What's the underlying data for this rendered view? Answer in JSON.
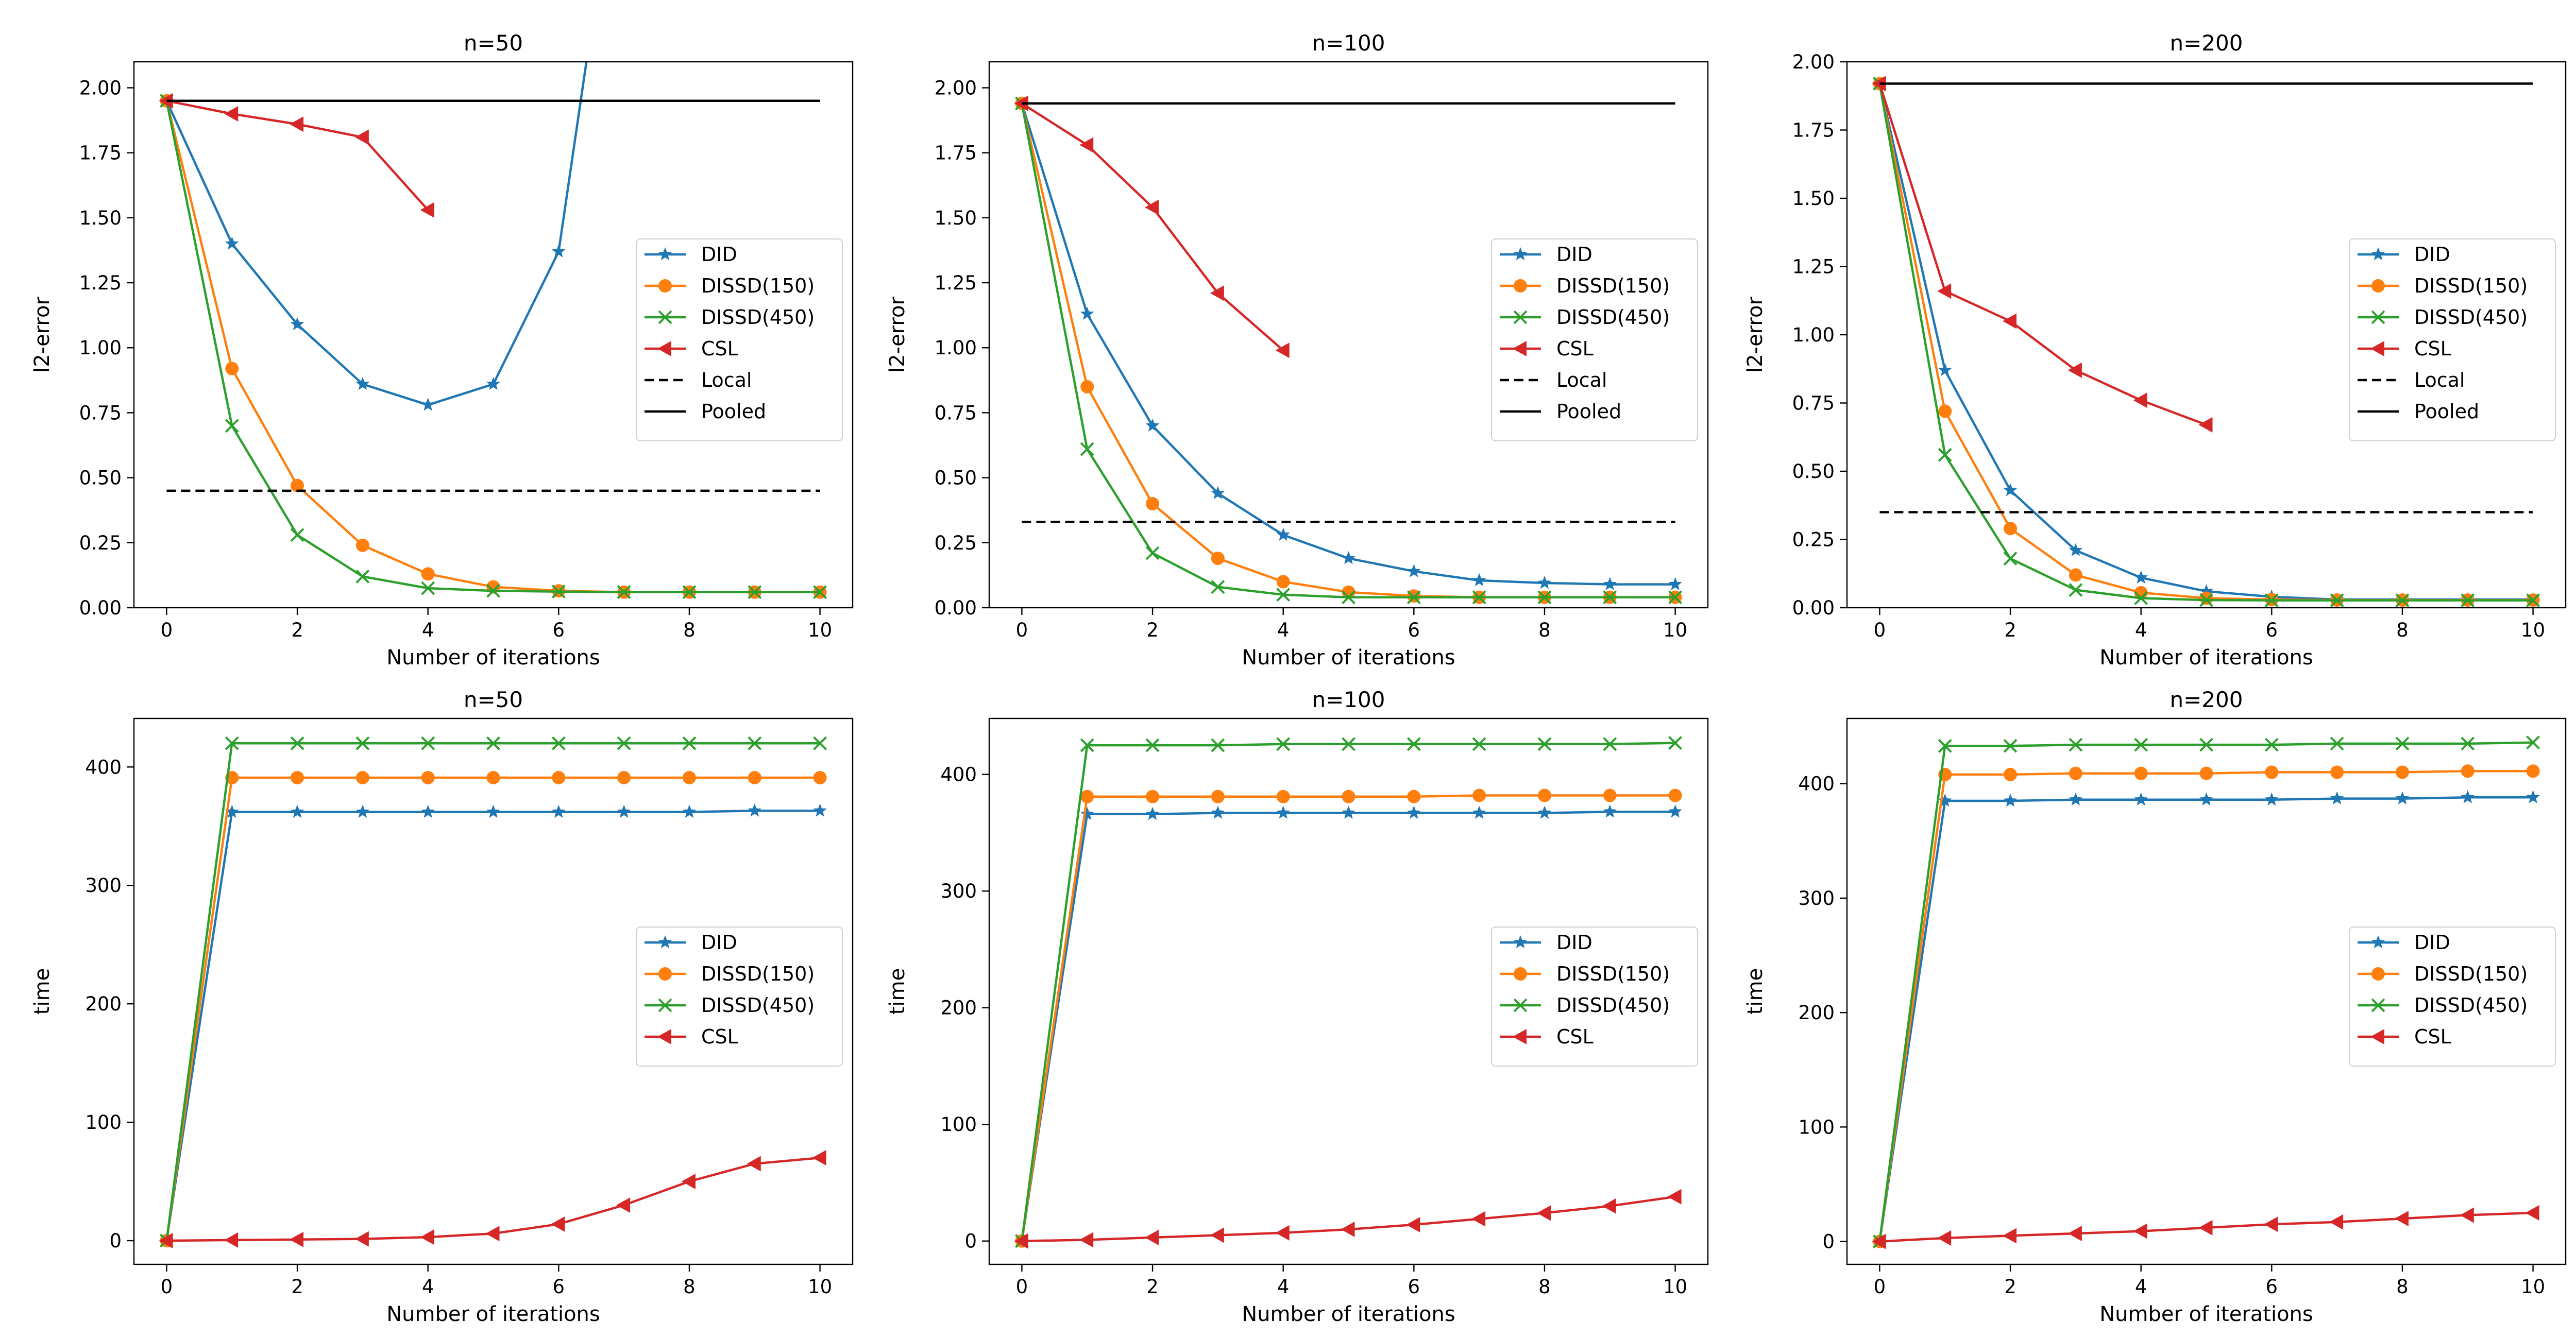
{
  "colors": {
    "DID": "#1f77b4",
    "DISSD(150)": "#ff7f0e",
    "DISSD(450)": "#2ca02c",
    "CSL": "#d62728",
    "Local": "#000000",
    "Pooled": "#000000"
  },
  "chart_data": [
    {
      "type": "line",
      "title": "n=50",
      "xlabel": "Number of iterations",
      "ylabel": "l2-error",
      "xlim": [
        -0.5,
        10.5
      ],
      "ylim": [
        0,
        2.1
      ],
      "xticks": [
        0,
        2,
        4,
        6,
        8,
        10
      ],
      "xtick_labels": [
        "0",
        "2",
        "4",
        "6",
        "8",
        "10"
      ],
      "yticks": [
        0,
        0.25,
        0.5,
        0.75,
        1.0,
        1.25,
        1.5,
        1.75,
        2.0
      ],
      "ytick_labels": [
        "0.00",
        "0.25",
        "0.50",
        "0.75",
        "1.00",
        "1.25",
        "1.50",
        "1.75",
        "2.00"
      ],
      "legend_position": "center-right",
      "series": [
        {
          "name": "DID",
          "marker": "star",
          "x": [
            0,
            1,
            2,
            3,
            4,
            5,
            6,
            6.6
          ],
          "y": [
            1.95,
            1.4,
            1.09,
            0.86,
            0.78,
            0.86,
            1.37,
            2.4
          ],
          "marker_count": 7
        },
        {
          "name": "DISSD(150)",
          "marker": "circle",
          "x": [
            0,
            1,
            2,
            3,
            4,
            5,
            6,
            7,
            8,
            9,
            10
          ],
          "y": [
            1.95,
            0.92,
            0.47,
            0.24,
            0.13,
            0.08,
            0.065,
            0.06,
            0.06,
            0.06,
            0.06
          ]
        },
        {
          "name": "DISSD(450)",
          "marker": "x",
          "x": [
            0,
            1,
            2,
            3,
            4,
            5,
            6,
            7,
            8,
            9,
            10
          ],
          "y": [
            1.95,
            0.7,
            0.28,
            0.12,
            0.075,
            0.065,
            0.062,
            0.06,
            0.06,
            0.06,
            0.06
          ]
        },
        {
          "name": "CSL",
          "marker": "triangle-left",
          "x": [
            0,
            1,
            2,
            3,
            4
          ],
          "y": [
            1.95,
            1.9,
            1.86,
            1.81,
            1.53
          ]
        },
        {
          "name": "Local",
          "marker": "none",
          "dash": "dashed",
          "x": [
            0,
            10
          ],
          "y": [
            0.45,
            0.45
          ]
        },
        {
          "name": "Pooled",
          "marker": "none",
          "dash": "solid",
          "x": [
            0,
            10
          ],
          "y": [
            1.95,
            1.95
          ]
        }
      ]
    },
    {
      "type": "line",
      "title": "n=100",
      "xlabel": "Number of iterations",
      "ylabel": "l2-error",
      "xlim": [
        -0.5,
        10.5
      ],
      "ylim": [
        0,
        2.1
      ],
      "xticks": [
        0,
        2,
        4,
        6,
        8,
        10
      ],
      "xtick_labels": [
        "0",
        "2",
        "4",
        "6",
        "8",
        "10"
      ],
      "yticks": [
        0,
        0.25,
        0.5,
        0.75,
        1.0,
        1.25,
        1.5,
        1.75,
        2.0
      ],
      "ytick_labels": [
        "0.00",
        "0.25",
        "0.50",
        "0.75",
        "1.00",
        "1.25",
        "1.50",
        "1.75",
        "2.00"
      ],
      "legend_position": "center-right",
      "series": [
        {
          "name": "DID",
          "marker": "star",
          "x": [
            0,
            1,
            2,
            3,
            4,
            5,
            6,
            7,
            8,
            9,
            10
          ],
          "y": [
            1.94,
            1.13,
            0.7,
            0.44,
            0.28,
            0.19,
            0.14,
            0.105,
            0.095,
            0.09,
            0.09
          ]
        },
        {
          "name": "DISSD(150)",
          "marker": "circle",
          "x": [
            0,
            1,
            2,
            3,
            4,
            5,
            6,
            7,
            8,
            9,
            10
          ],
          "y": [
            1.94,
            0.85,
            0.4,
            0.19,
            0.1,
            0.06,
            0.045,
            0.04,
            0.04,
            0.04,
            0.04
          ]
        },
        {
          "name": "DISSD(450)",
          "marker": "x",
          "x": [
            0,
            1,
            2,
            3,
            4,
            5,
            6,
            7,
            8,
            9,
            10
          ],
          "y": [
            1.94,
            0.61,
            0.21,
            0.08,
            0.05,
            0.04,
            0.04,
            0.04,
            0.04,
            0.04,
            0.04
          ]
        },
        {
          "name": "CSL",
          "marker": "triangle-left",
          "x": [
            0,
            1,
            2,
            3,
            4
          ],
          "y": [
            1.94,
            1.78,
            1.54,
            1.21,
            0.99
          ]
        },
        {
          "name": "Local",
          "marker": "none",
          "dash": "dashed",
          "x": [
            0,
            10
          ],
          "y": [
            0.33,
            0.33
          ]
        },
        {
          "name": "Pooled",
          "marker": "none",
          "dash": "solid",
          "x": [
            0,
            10
          ],
          "y": [
            1.94,
            1.94
          ]
        }
      ]
    },
    {
      "type": "line",
      "title": "n=200",
      "xlabel": "Number of iterations",
      "ylabel": "l2-error",
      "xlim": [
        -0.5,
        10.5
      ],
      "ylim": [
        0,
        2.0
      ],
      "xticks": [
        0,
        2,
        4,
        6,
        8,
        10
      ],
      "xtick_labels": [
        "0",
        "2",
        "4",
        "6",
        "8",
        "10"
      ],
      "yticks": [
        0,
        0.25,
        0.5,
        0.75,
        1.0,
        1.25,
        1.5,
        1.75,
        2.0
      ],
      "ytick_labels": [
        "0.00",
        "0.25",
        "0.50",
        "0.75",
        "1.00",
        "1.25",
        "1.50",
        "1.75",
        "2.00"
      ],
      "legend_position": "center-right",
      "series": [
        {
          "name": "DID",
          "marker": "star",
          "x": [
            0,
            1,
            2,
            3,
            4,
            5,
            6,
            7,
            8,
            9,
            10
          ],
          "y": [
            1.92,
            0.87,
            0.43,
            0.21,
            0.11,
            0.06,
            0.04,
            0.03,
            0.03,
            0.03,
            0.03
          ]
        },
        {
          "name": "DISSD(150)",
          "marker": "circle",
          "x": [
            0,
            1,
            2,
            3,
            4,
            5,
            6,
            7,
            8,
            9,
            10
          ],
          "y": [
            1.92,
            0.72,
            0.29,
            0.12,
            0.055,
            0.035,
            0.03,
            0.028,
            0.028,
            0.028,
            0.028
          ]
        },
        {
          "name": "DISSD(450)",
          "marker": "x",
          "x": [
            0,
            1,
            2,
            3,
            4,
            5,
            6,
            7,
            8,
            9,
            10
          ],
          "y": [
            1.92,
            0.56,
            0.18,
            0.065,
            0.035,
            0.028,
            0.027,
            0.027,
            0.027,
            0.027,
            0.027
          ]
        },
        {
          "name": "CSL",
          "marker": "triangle-left",
          "x": [
            0,
            1,
            2,
            3,
            4,
            5
          ],
          "y": [
            1.92,
            1.16,
            1.05,
            0.87,
            0.76,
            0.67
          ]
        },
        {
          "name": "Local",
          "marker": "none",
          "dash": "dashed",
          "x": [
            0,
            10
          ],
          "y": [
            0.35,
            0.35
          ]
        },
        {
          "name": "Pooled",
          "marker": "none",
          "dash": "solid",
          "x": [
            0,
            10
          ],
          "y": [
            1.92,
            1.92
          ]
        }
      ]
    },
    {
      "type": "line",
      "title": "n=50",
      "xlabel": "Number of iterations",
      "ylabel": "time",
      "xlim": [
        -0.5,
        10.5
      ],
      "ylim": [
        -20,
        441
      ],
      "xticks": [
        0,
        2,
        4,
        6,
        8,
        10
      ],
      "xtick_labels": [
        "0",
        "2",
        "4",
        "6",
        "8",
        "10"
      ],
      "yticks": [
        0,
        100,
        200,
        300,
        400
      ],
      "ytick_labels": [
        "0",
        "100",
        "200",
        "300",
        "400"
      ],
      "legend_position": "center-right",
      "series": [
        {
          "name": "DID",
          "marker": "star",
          "x": [
            0,
            1,
            2,
            3,
            4,
            5,
            6,
            7,
            8,
            9,
            10
          ],
          "y": [
            0,
            362,
            362,
            362,
            362,
            362,
            362,
            362,
            362,
            363,
            363
          ]
        },
        {
          "name": "DISSD(150)",
          "marker": "circle",
          "x": [
            0,
            1,
            2,
            3,
            4,
            5,
            6,
            7,
            8,
            9,
            10
          ],
          "y": [
            0,
            391,
            391,
            391,
            391,
            391,
            391,
            391,
            391,
            391,
            391
          ]
        },
        {
          "name": "DISSD(450)",
          "marker": "x",
          "x": [
            0,
            1,
            2,
            3,
            4,
            5,
            6,
            7,
            8,
            9,
            10
          ],
          "y": [
            0,
            420,
            420,
            420,
            420,
            420,
            420,
            420,
            420,
            420,
            420
          ]
        },
        {
          "name": "CSL",
          "marker": "triangle-left",
          "x": [
            0,
            1,
            2,
            3,
            4,
            5,
            6,
            7,
            8,
            9,
            10
          ],
          "y": [
            0,
            0.5,
            1,
            1.5,
            3,
            6,
            14,
            30,
            50,
            65,
            70
          ]
        }
      ]
    },
    {
      "type": "line",
      "title": "n=100",
      "xlabel": "Number of iterations",
      "ylabel": "time",
      "xlim": [
        -0.5,
        10.5
      ],
      "ylim": [
        -20,
        448
      ],
      "xticks": [
        0,
        2,
        4,
        6,
        8,
        10
      ],
      "xtick_labels": [
        "0",
        "2",
        "4",
        "6",
        "8",
        "10"
      ],
      "yticks": [
        0,
        100,
        200,
        300,
        400
      ],
      "ytick_labels": [
        "0",
        "100",
        "200",
        "300",
        "400"
      ],
      "legend_position": "center-right",
      "series": [
        {
          "name": "DID",
          "marker": "star",
          "x": [
            0,
            1,
            2,
            3,
            4,
            5,
            6,
            7,
            8,
            9,
            10
          ],
          "y": [
            0,
            366,
            366,
            367,
            367,
            367,
            367,
            367,
            367,
            368,
            368
          ]
        },
        {
          "name": "DISSD(150)",
          "marker": "circle",
          "x": [
            0,
            1,
            2,
            3,
            4,
            5,
            6,
            7,
            8,
            9,
            10
          ],
          "y": [
            0,
            381,
            381,
            381,
            381,
            381,
            381,
            382,
            382,
            382,
            382
          ]
        },
        {
          "name": "DISSD(450)",
          "marker": "x",
          "x": [
            0,
            1,
            2,
            3,
            4,
            5,
            6,
            7,
            8,
            9,
            10
          ],
          "y": [
            0,
            425,
            425,
            425,
            426,
            426,
            426,
            426,
            426,
            426,
            427
          ]
        },
        {
          "name": "CSL",
          "marker": "triangle-left",
          "x": [
            0,
            1,
            2,
            3,
            4,
            5,
            6,
            7,
            8,
            9,
            10
          ],
          "y": [
            0,
            1,
            3,
            5,
            7,
            10,
            14,
            19,
            24,
            30,
            38
          ]
        }
      ]
    },
    {
      "type": "line",
      "title": "n=200",
      "xlabel": "Number of iterations",
      "ylabel": "time",
      "xlim": [
        -0.5,
        10.5
      ],
      "ylim": [
        -20,
        457
      ],
      "xticks": [
        0,
        2,
        4,
        6,
        8,
        10
      ],
      "xtick_labels": [
        "0",
        "2",
        "4",
        "6",
        "8",
        "10"
      ],
      "yticks": [
        0,
        100,
        200,
        300,
        400
      ],
      "ytick_labels": [
        "0",
        "100",
        "200",
        "300",
        "400"
      ],
      "legend_position": "center-right",
      "series": [
        {
          "name": "DID",
          "marker": "star",
          "x": [
            0,
            1,
            2,
            3,
            4,
            5,
            6,
            7,
            8,
            9,
            10
          ],
          "y": [
            0,
            385,
            385,
            386,
            386,
            386,
            386,
            387,
            387,
            388,
            388
          ]
        },
        {
          "name": "DISSD(150)",
          "marker": "circle",
          "x": [
            0,
            1,
            2,
            3,
            4,
            5,
            6,
            7,
            8,
            9,
            10
          ],
          "y": [
            0,
            408,
            408,
            409,
            409,
            409,
            410,
            410,
            410,
            411,
            411
          ]
        },
        {
          "name": "DISSD(450)",
          "marker": "x",
          "x": [
            0,
            1,
            2,
            3,
            4,
            5,
            6,
            7,
            8,
            9,
            10
          ],
          "y": [
            0,
            433,
            433,
            434,
            434,
            434,
            434,
            435,
            435,
            435,
            436
          ]
        },
        {
          "name": "CSL",
          "marker": "triangle-left",
          "x": [
            0,
            1,
            2,
            3,
            4,
            5,
            6,
            7,
            8,
            9,
            10
          ],
          "y": [
            0,
            3,
            5,
            7,
            9,
            12,
            15,
            17,
            20,
            23,
            25
          ]
        }
      ]
    }
  ]
}
